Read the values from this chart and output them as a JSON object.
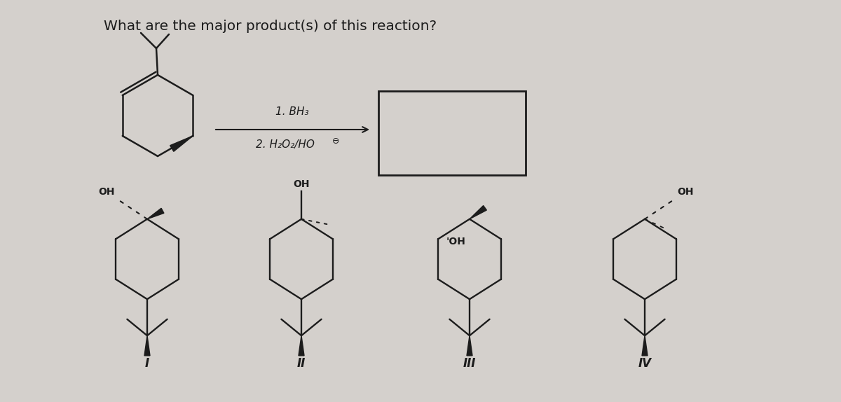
{
  "title": "What are the major product(s) of this reaction?",
  "title_fontsize": 14.5,
  "bg_color": "#d4d0cc",
  "reagent1": "1. BH₃",
  "reagent2": "2. H₂O₂/HO",
  "circle_minus": "⊖",
  "label_I": "I",
  "label_II": "II",
  "label_III": "III",
  "label_IV": "IV",
  "fig_width": 12.0,
  "fig_height": 5.74,
  "lw_ring": 1.6,
  "lw_wedge": 1.5
}
